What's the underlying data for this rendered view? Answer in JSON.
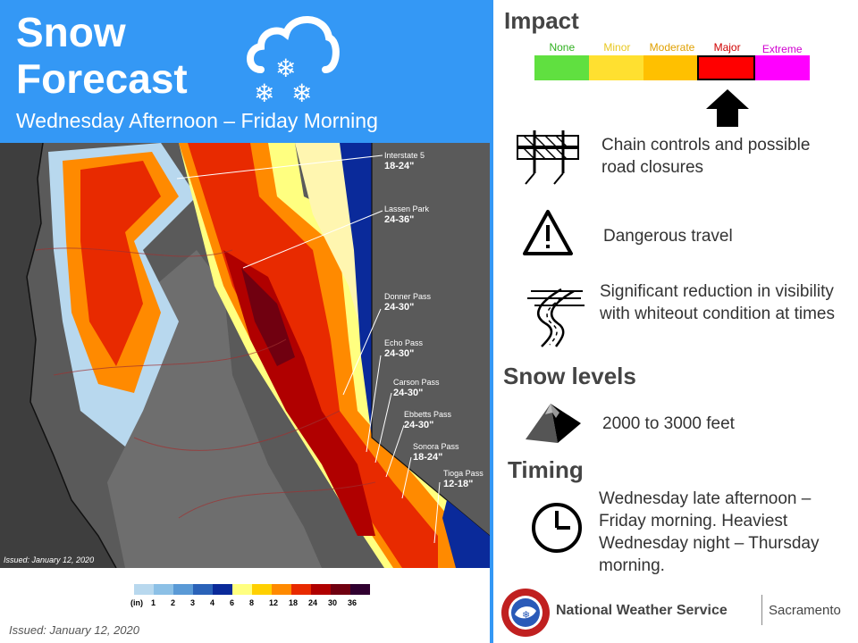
{
  "header": {
    "title_line1": "Snow",
    "title_line2": "Forecast",
    "subtitle": "Wednesday Afternoon – Friday Morning",
    "icon": "cloud-snow-icon"
  },
  "map": {
    "issued": "Issued: January 12, 2020",
    "callouts": [
      {
        "name": "Interstate 5",
        "amount": "18-24\""
      },
      {
        "name": "Lassen Park",
        "amount": "24-36\""
      },
      {
        "name": "Donner Pass",
        "amount": "24-30\""
      },
      {
        "name": "Echo Pass",
        "amount": "24-30\""
      },
      {
        "name": "Carson Pass",
        "amount": "24-30\""
      },
      {
        "name": "Ebbetts Pass",
        "amount": "24-30\""
      },
      {
        "name": "Sonora Pass",
        "amount": "18-24\""
      },
      {
        "name": "Tioga Pass",
        "amount": "12-18\""
      }
    ]
  },
  "legend": {
    "unit": "(in)",
    "labels": [
      "1",
      "2",
      "3",
      "4",
      "6",
      "8",
      "12",
      "18",
      "24",
      "30",
      "36"
    ],
    "colors": [
      "#b8d8ee",
      "#8cc0e6",
      "#5a9ad6",
      "#2a62b8",
      "#0a2a9a",
      "#ffff80",
      "#ffd000",
      "#ff8a00",
      "#e82a00",
      "#b00000",
      "#700010",
      "#300030"
    ]
  },
  "issued_bottom": "Issued: January 12, 2020",
  "impact": {
    "heading": "Impact",
    "levels": [
      {
        "label": "None",
        "color": "#60e040",
        "label_color": "#30b020"
      },
      {
        "label": "Minor",
        "color": "#ffe030",
        "label_color": "#e8c820"
      },
      {
        "label": "Moderate",
        "color": "#ffc000",
        "label_color": "#e0a000"
      },
      {
        "label": "Major",
        "color": "#ff0000",
        "label_color": "#d00000"
      },
      {
        "label": "Extreme",
        "color": "#ff00ff",
        "label_color": "#d000d0"
      }
    ],
    "selected": "Major",
    "items": [
      {
        "icon": "road-barrier-icon",
        "text": "Chain controls and possible road closures"
      },
      {
        "icon": "warning-triangle-icon",
        "text": "Dangerous travel"
      },
      {
        "icon": "whiteout-road-icon",
        "text": "Significant reduction in visibility with whiteout condition at times"
      }
    ]
  },
  "snow_levels": {
    "heading": "Snow levels",
    "icon": "mountain-icon",
    "text": "2000 to 3000 feet"
  },
  "timing": {
    "heading": "Timing",
    "icon": "clock-icon",
    "text": "Wednesday late afternoon – Friday morning. Heaviest Wednesday night – Thursday morning."
  },
  "footer": {
    "logo": "nws-logo-icon",
    "agency": "National Weather Service",
    "office": "Sacramento"
  }
}
